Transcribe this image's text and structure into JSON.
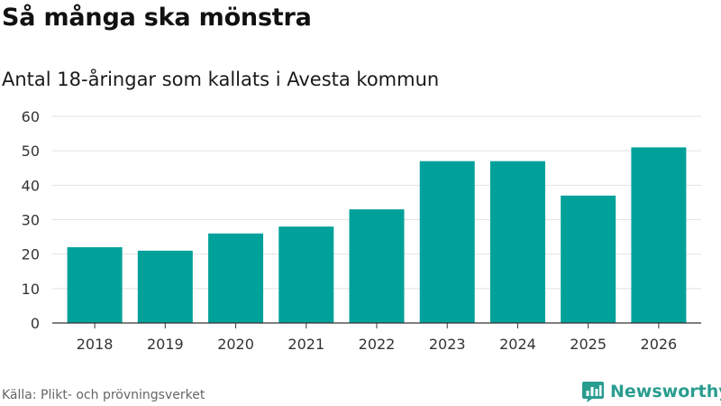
{
  "header": {
    "title": "Så många ska mönstra",
    "subtitle": "Antal 18-åringar som kallats i Avesta kommun"
  },
  "footer": {
    "source": "Källa: Plikt- och prövningsverket",
    "brand": "Newsworthy",
    "brand_icon": "bar-chart-logo-icon"
  },
  "colors": {
    "bar": "#00a19a",
    "grid": "#e2e2e2",
    "axis": "#333333",
    "tick_text": "#333333",
    "brand": "#2a9d8f"
  },
  "chart_data": {
    "type": "bar",
    "title": "Så många ska mönstra",
    "subtitle": "Antal 18-åringar som kallats i Avesta kommun",
    "categories": [
      "2018",
      "2019",
      "2020",
      "2021",
      "2022",
      "2023",
      "2024",
      "2025",
      "2026"
    ],
    "values": [
      22,
      21,
      26,
      28,
      33,
      47,
      47,
      37,
      51
    ],
    "xlabel": "",
    "ylabel": "",
    "ylim": [
      0,
      60
    ],
    "yticks": [
      0,
      10,
      20,
      30,
      40,
      50,
      60
    ],
    "grid": true,
    "legend": "none"
  }
}
